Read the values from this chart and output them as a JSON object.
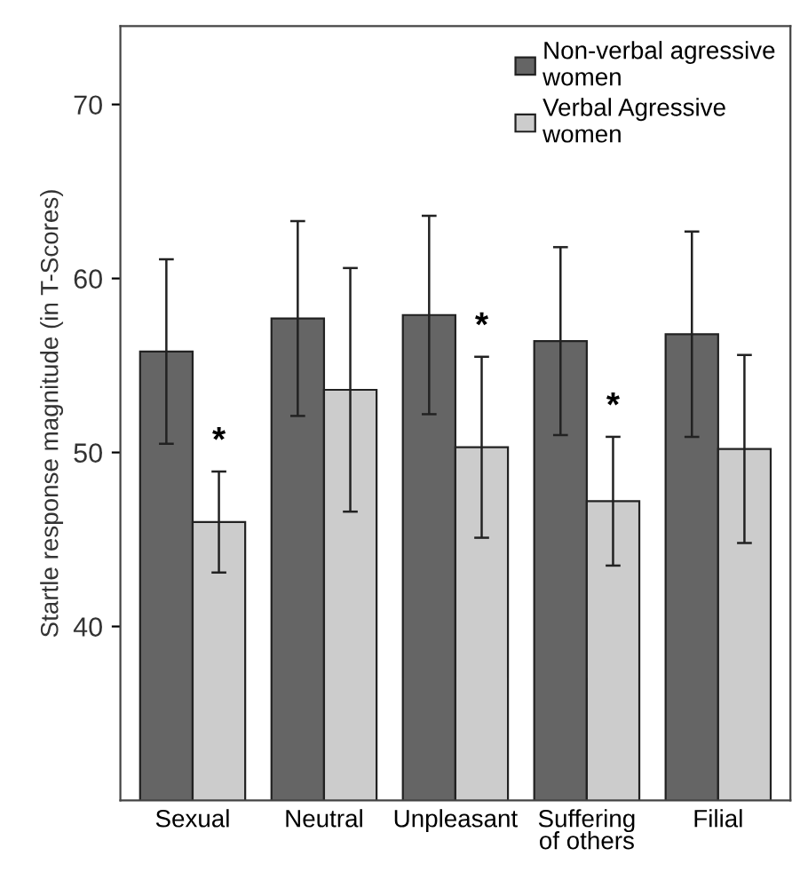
{
  "chart_data": {
    "type": "bar",
    "ylabel": "Startle response magnitude (in T-Scores)",
    "categories": [
      "Sexual",
      "Neutral",
      "Unpleasant",
      "Suffering\nof others",
      "Filial"
    ],
    "series": [
      {
        "name": "Non-verbal agressive\nwomen",
        "color": "#656565",
        "values": [
          55.8,
          57.7,
          57.9,
          56.4,
          56.8
        ],
        "errors": [
          5.3,
          5.6,
          5.7,
          5.4,
          5.9
        ]
      },
      {
        "name": "Verbal Agressive\nwomen",
        "color": "#cccccc",
        "values": [
          46.0,
          53.6,
          50.3,
          47.2,
          50.2
        ],
        "errors": [
          2.9,
          7.0,
          5.2,
          3.7,
          5.4
        ]
      }
    ],
    "annotations": [
      {
        "text": "*",
        "x": "Sexual",
        "y": 50.6
      },
      {
        "text": "*",
        "x": "Unpleasant",
        "y": 57.2
      },
      {
        "text": "*",
        "x": "Suffering\nof others",
        "y": 52.6
      }
    ],
    "ylim": [
      30,
      74.5
    ],
    "yticks": [
      40,
      50,
      60,
      70
    ],
    "grid": false,
    "legend": "top right"
  }
}
